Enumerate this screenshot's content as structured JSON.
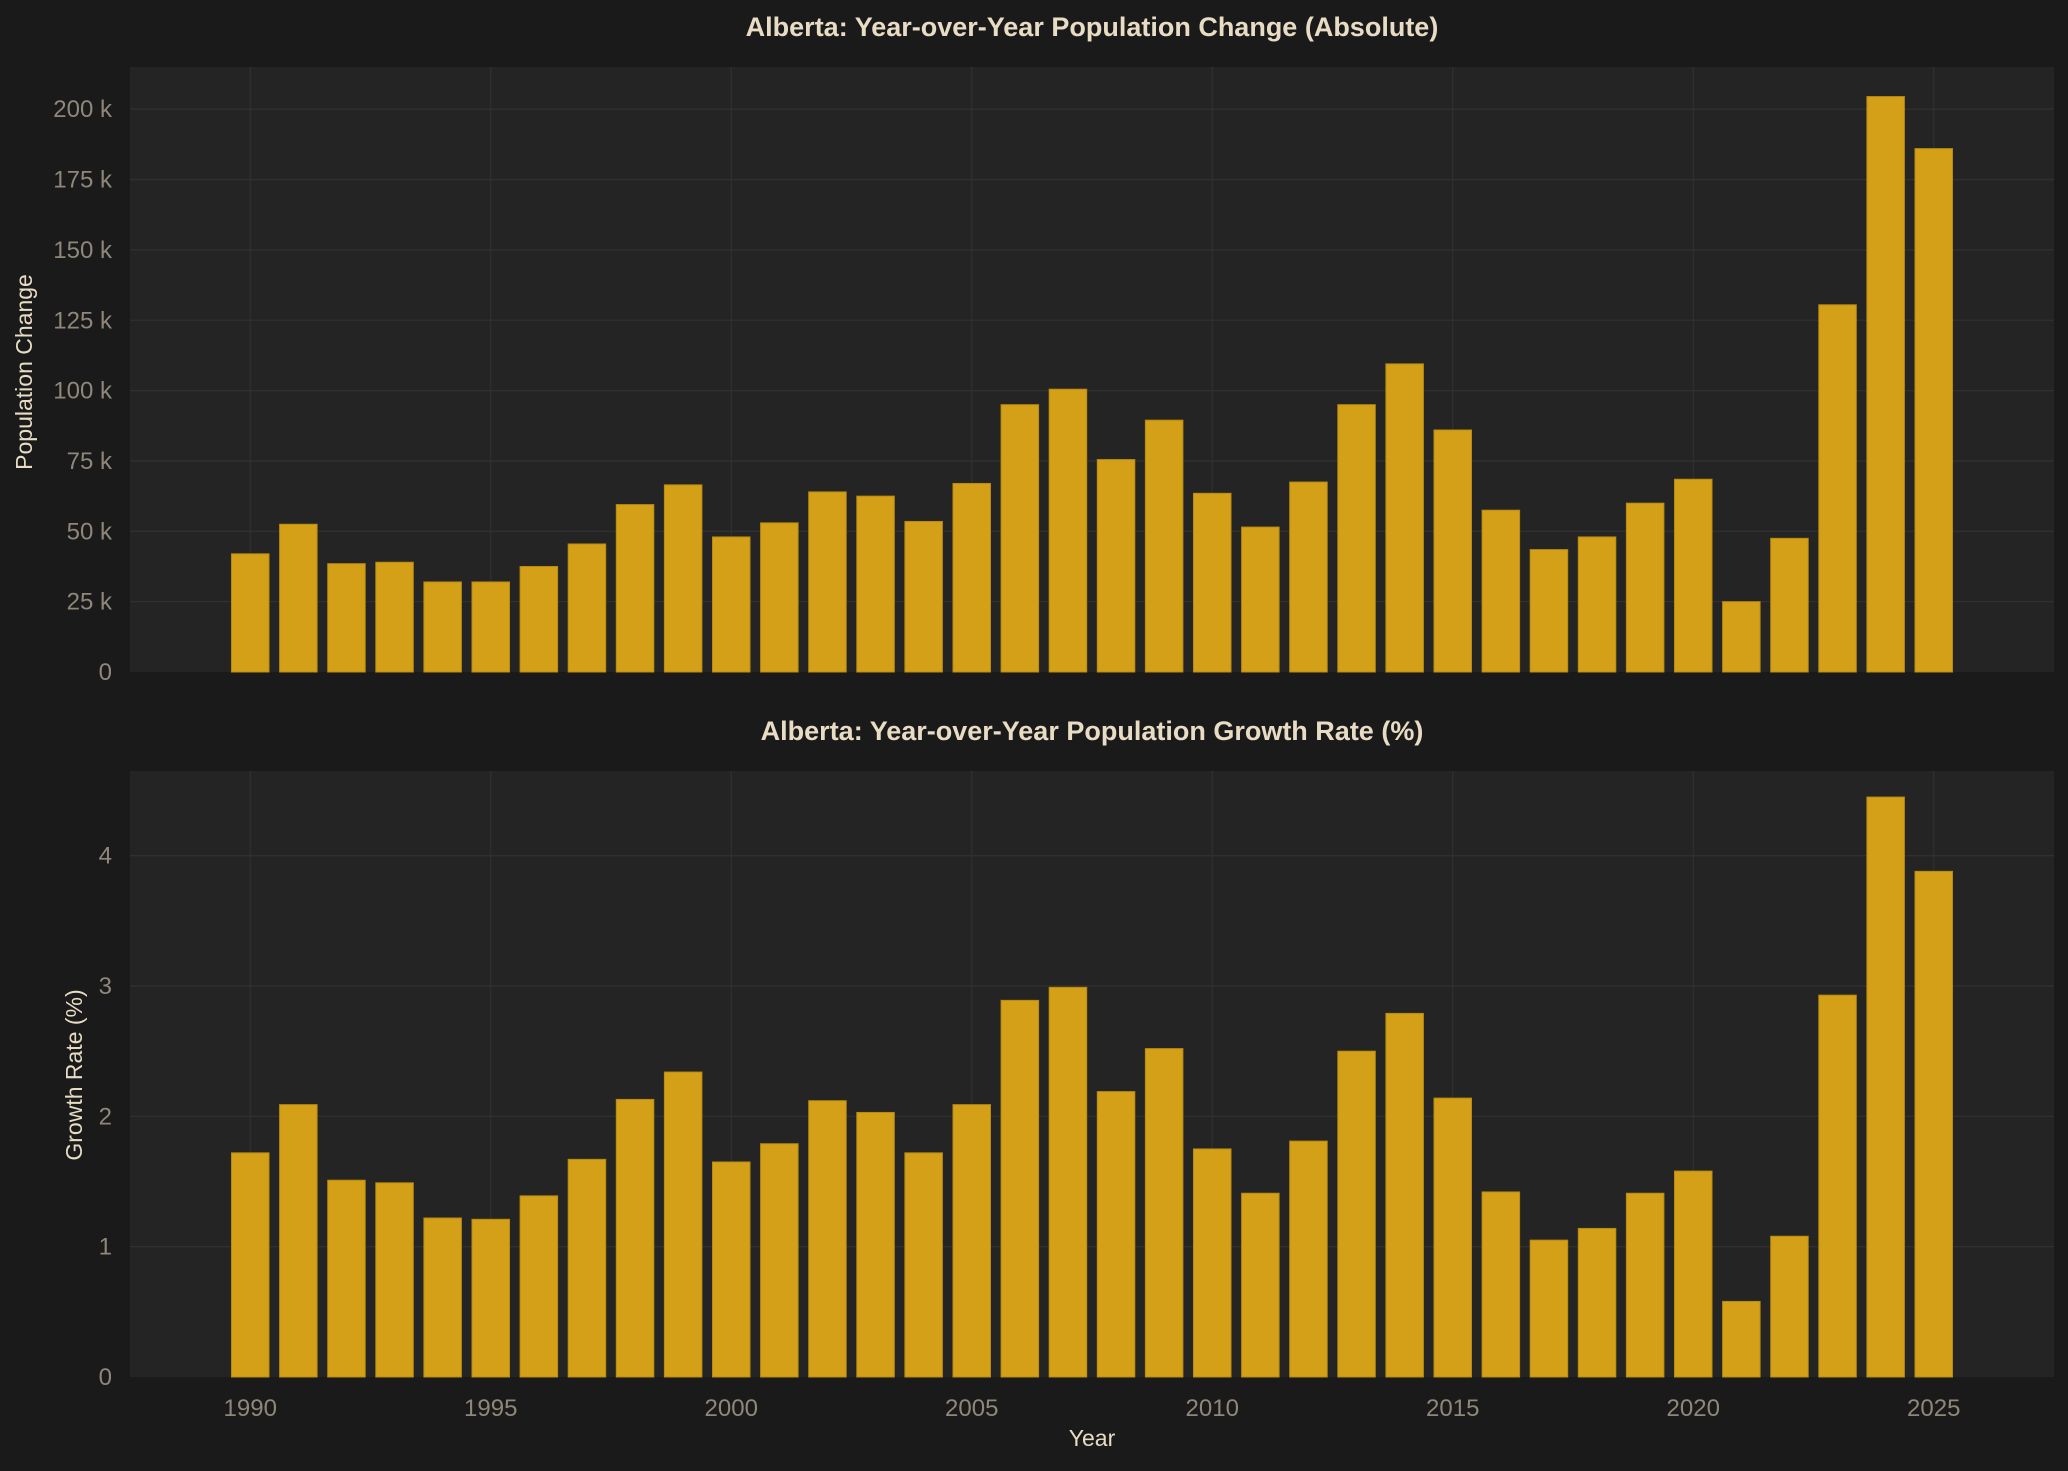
{
  "colors": {
    "page_background": "#1a1a1a",
    "plot_background": "#242424",
    "grid": "#303030",
    "bar": "#d4a017",
    "title_text": "#e8dcc4",
    "tick_text": "#8f877a"
  },
  "chart_data": [
    {
      "type": "bar",
      "title": "Alberta: Year-over-Year Population Change (Absolute)",
      "xlabel": "",
      "ylabel": "Population Change",
      "x": [
        1990,
        1991,
        1992,
        1993,
        1994,
        1995,
        1996,
        1997,
        1998,
        1999,
        2000,
        2001,
        2002,
        2003,
        2004,
        2005,
        2006,
        2007,
        2008,
        2009,
        2010,
        2011,
        2012,
        2013,
        2014,
        2015,
        2016,
        2017,
        2018,
        2019,
        2020,
        2021,
        2022,
        2023,
        2024,
        2025
      ],
      "values": [
        42000,
        52500,
        38500,
        39000,
        32000,
        32000,
        37500,
        45500,
        59500,
        66500,
        48000,
        53000,
        64000,
        62500,
        53500,
        67000,
        95000,
        100500,
        75500,
        89500,
        63500,
        51500,
        67500,
        95000,
        109500,
        86000,
        57500,
        43500,
        48000,
        60000,
        68500,
        25000,
        47500,
        130500,
        204500,
        186000
      ],
      "xlim": [
        1987.5,
        2027.5
      ],
      "ylim": [
        0,
        215000
      ],
      "yticks": [
        0,
        25000,
        50000,
        75000,
        100000,
        125000,
        150000,
        175000,
        200000
      ],
      "ytick_labels": [
        "0",
        "25 k",
        "50 k",
        "75 k",
        "100 k",
        "125 k",
        "150 k",
        "175 k",
        "200 k"
      ],
      "xticks": [
        1990,
        1995,
        2000,
        2005,
        2010,
        2015,
        2020,
        2025
      ],
      "xtick_labels": [],
      "grid": true,
      "legend": "none"
    },
    {
      "type": "bar",
      "title": "Alberta: Year-over-Year Population Growth Rate (%)",
      "xlabel": "Year",
      "ylabel": "Growth Rate (%)",
      "x": [
        1990,
        1991,
        1992,
        1993,
        1994,
        1995,
        1996,
        1997,
        1998,
        1999,
        2000,
        2001,
        2002,
        2003,
        2004,
        2005,
        2006,
        2007,
        2008,
        2009,
        2010,
        2011,
        2012,
        2013,
        2014,
        2015,
        2016,
        2017,
        2018,
        2019,
        2020,
        2021,
        2022,
        2023,
        2024,
        2025
      ],
      "values": [
        1.72,
        2.09,
        1.51,
        1.49,
        1.22,
        1.21,
        1.39,
        1.67,
        2.13,
        2.34,
        1.65,
        1.79,
        2.12,
        2.03,
        1.72,
        2.09,
        2.89,
        2.99,
        2.19,
        2.52,
        1.75,
        1.41,
        1.81,
        2.5,
        2.79,
        2.14,
        1.42,
        1.05,
        1.14,
        1.41,
        1.58,
        0.58,
        1.08,
        2.93,
        4.45,
        3.88
      ],
      "xlim": [
        1987.5,
        2027.5
      ],
      "ylim": [
        0,
        4.65
      ],
      "yticks": [
        0,
        1,
        2,
        3,
        4
      ],
      "ytick_labels": [
        "0",
        "1",
        "2",
        "3",
        "4"
      ],
      "xticks": [
        1990,
        1995,
        2000,
        2005,
        2010,
        2015,
        2020,
        2025
      ],
      "xtick_labels": [
        "1990",
        "1995",
        "2000",
        "2005",
        "2010",
        "2015",
        "2020",
        "2025"
      ],
      "grid": true,
      "legend": "none"
    }
  ]
}
